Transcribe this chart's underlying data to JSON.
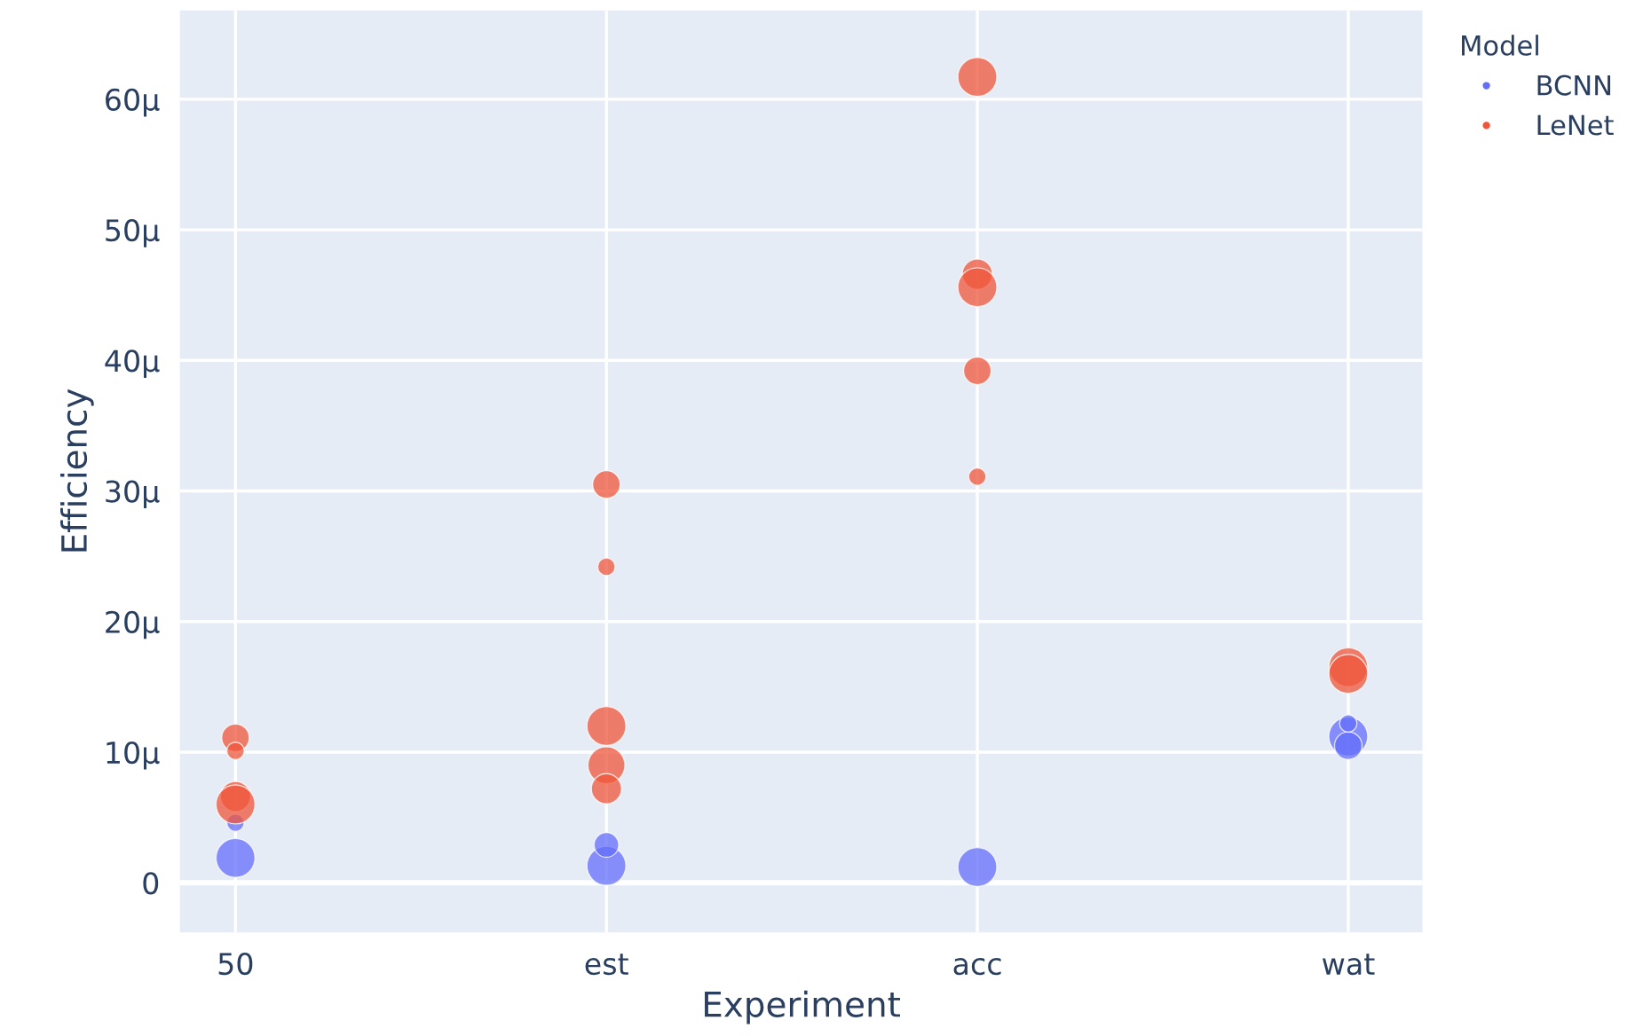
{
  "chart_data": {
    "type": "bubble",
    "xlabel": "Experiment",
    "ylabel": "Efficiency",
    "legend_title": "Model",
    "categories": [
      "50",
      "est",
      "acc",
      "wat"
    ],
    "series": [
      {
        "name": "BCNN",
        "color": "#636efa",
        "x": [
          "50",
          "50",
          "est",
          "est",
          "acc",
          "wat",
          "wat",
          "wat"
        ],
        "values": [
          1.9,
          4.6,
          1.3,
          2.9,
          1.2,
          11.2,
          10.5,
          12.2
        ],
        "sizes": [
          1,
          0.2,
          1,
          0.4,
          1,
          1,
          0.5,
          0.2
        ]
      },
      {
        "name": "LeNet",
        "color": "#ef553b",
        "x": [
          "50",
          "50",
          "50",
          "50",
          "est",
          "est",
          "est",
          "est",
          "est",
          "acc",
          "acc",
          "acc",
          "acc",
          "acc",
          "wat",
          "wat"
        ],
        "values": [
          11.1,
          10.1,
          6.6,
          6.0,
          30.5,
          24.2,
          12.0,
          9.0,
          7.2,
          61.7,
          46.6,
          45.6,
          39.2,
          31.1,
          16.5,
          16.0
        ],
        "sizes": [
          0.5,
          0.2,
          0.6,
          1,
          0.5,
          0.2,
          1,
          0.9,
          0.6,
          1,
          0.6,
          1,
          0.5,
          0.2,
          1,
          1
        ]
      }
    ],
    "ylim": [
      -3.8,
      66.8
    ],
    "yticks": [
      0,
      {
        "value": 10,
        "label": "10μ"
      },
      {
        "value": 20,
        "label": "20μ"
      },
      {
        "value": 30,
        "label": "30μ"
      },
      {
        "value": 40,
        "label": "40μ"
      },
      {
        "value": 50,
        "label": "50μ"
      },
      {
        "value": 60,
        "label": "60μ"
      }
    ],
    "grid": true,
    "legend": "top right",
    "marker": "circle"
  }
}
